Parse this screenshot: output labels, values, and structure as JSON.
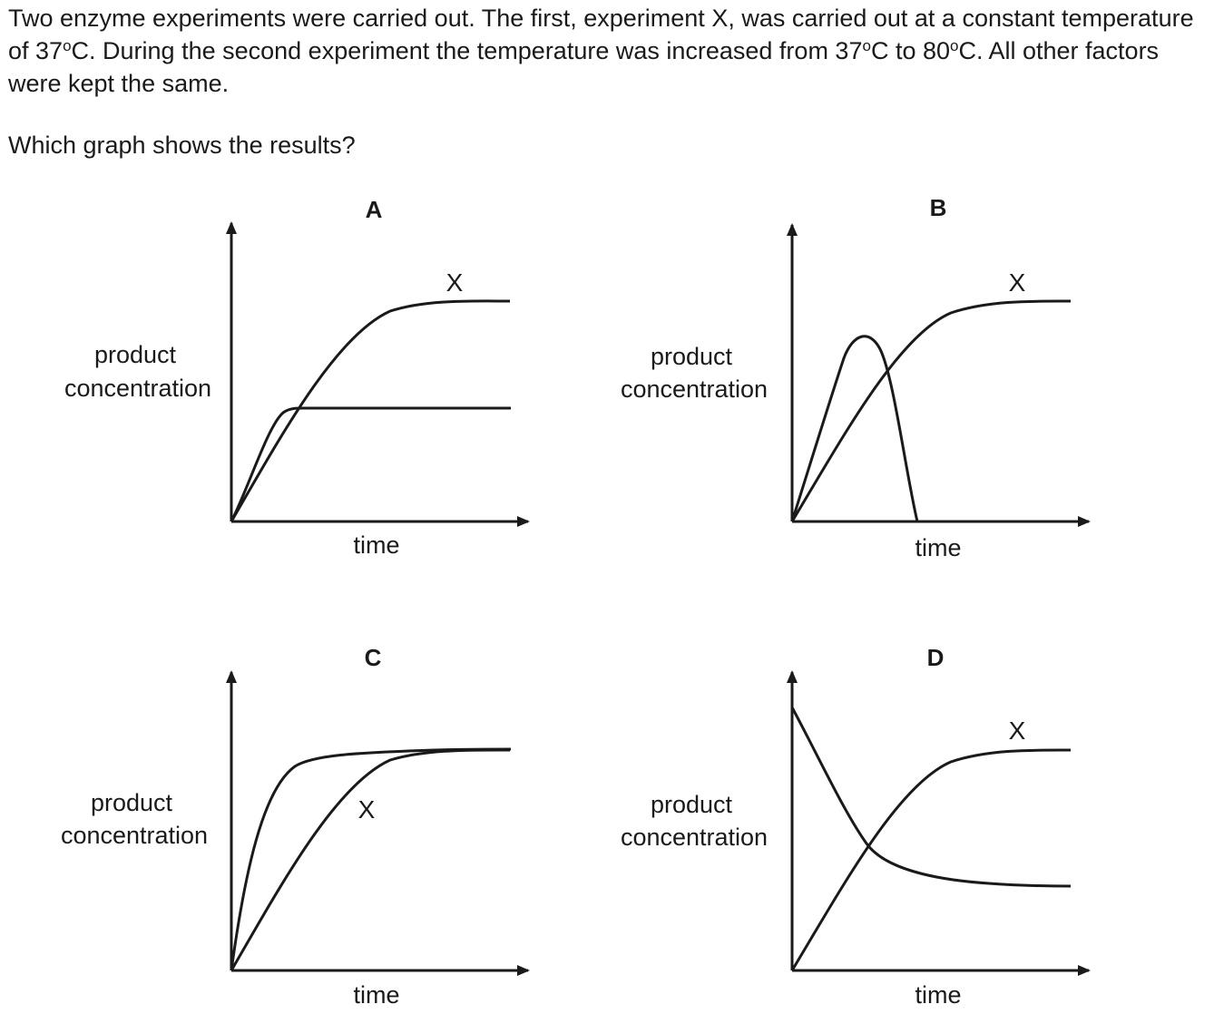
{
  "intro": {
    "s1": "Two enzyme experiments were carried out. The first, experiment X, was carried out at a constant temperature of 37",
    "s2": "C. During the second experiment the temperature was increased from 37",
    "s3": "C to 80",
    "s4": "C. All other factors were kept the same.",
    "degree": "o"
  },
  "question": "Which graph shows the results?",
  "graphs": [
    {
      "letter": "A",
      "ylabel_line1": "product",
      "ylabel_line2": "concentration",
      "xlabel": "time",
      "curve_label": "X"
    },
    {
      "letter": "B",
      "ylabel_line1": "product",
      "ylabel_line2": "concentration",
      "xlabel": "time",
      "curve_label": "X"
    },
    {
      "letter": "C",
      "ylabel_line1": "product",
      "ylabel_line2": "concentration",
      "xlabel": "time",
      "curve_label": "X"
    },
    {
      "letter": "D",
      "ylabel_line1": "product",
      "ylabel_line2": "concentration",
      "xlabel": "time",
      "curve_label": "X"
    }
  ],
  "colors": {
    "ink": "#1a1a1a",
    "background": "#ffffff"
  }
}
